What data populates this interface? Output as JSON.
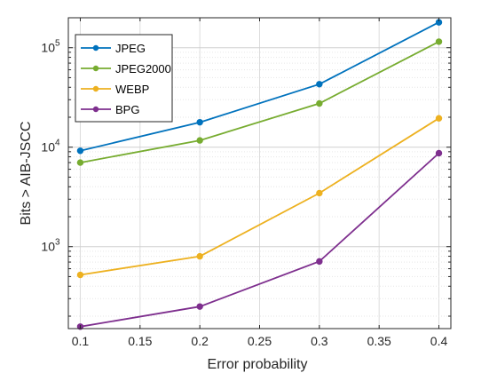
{
  "chart_data": {
    "type": "line",
    "title": "",
    "xlabel": "Error probability",
    "ylabel": "Bits > AIB-JSCC",
    "y_scale": "log",
    "grid": true,
    "legend_position": "top-left",
    "xlim": [
      0.09,
      0.41
    ],
    "ylim": [
      150,
      200000
    ],
    "x_ticks": [
      0.1,
      0.15,
      0.2,
      0.25,
      0.3,
      0.35,
      0.4
    ],
    "x_tick_labels": [
      "0.1",
      "0.15",
      "0.2",
      "0.25",
      "0.3",
      "0.35",
      "0.4"
    ],
    "y_ticks": [
      {
        "value": 1000,
        "base": "10",
        "exp": "3"
      },
      {
        "value": 10000,
        "base": "10",
        "exp": "4"
      },
      {
        "value": 100000,
        "base": "10",
        "exp": "5"
      }
    ],
    "x": [
      0.1,
      0.2,
      0.3,
      0.4
    ],
    "series": [
      {
        "name": "JPEG",
        "color": "#0072BD",
        "values": [
          9200,
          17800,
          43000,
          180000
        ]
      },
      {
        "name": "JPEG2000",
        "color": "#77AC30",
        "values": [
          7000,
          11700,
          27500,
          115000
        ]
      },
      {
        "name": "WEBP",
        "color": "#EDB120",
        "values": [
          520,
          800,
          3450,
          19500
        ]
      },
      {
        "name": "BPG",
        "color": "#7E2F8E",
        "values": [
          157,
          250,
          710,
          8700
        ]
      }
    ]
  }
}
